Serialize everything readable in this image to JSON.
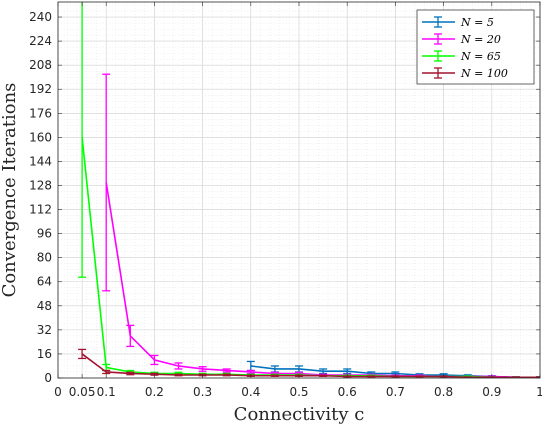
{
  "chart_data": {
    "type": "line",
    "xlabel": "Connectivity c",
    "ylabel": "Convergence Iterations",
    "xlim": [
      0,
      1
    ],
    "ylim": [
      0,
      250
    ],
    "grid": true,
    "minor_grid": true,
    "legend_position": "top-right",
    "x_ticks": [
      0,
      0.05,
      0.1,
      0.2,
      0.3,
      0.4,
      0.5,
      0.6,
      0.7,
      0.8,
      0.9,
      1
    ],
    "x_tick_labels": [
      "0",
      "0.05",
      "0.1",
      "0.2",
      "0.3",
      "0.4",
      "0.5",
      "0.6",
      "0.7",
      "0.8",
      "0.9",
      "1"
    ],
    "y_ticks": [
      0,
      16,
      32,
      48,
      64,
      80,
      96,
      112,
      128,
      144,
      160,
      176,
      192,
      208,
      224,
      240
    ],
    "y_tick_labels": [
      "0",
      "16",
      "32",
      "48",
      "64",
      "80",
      "96",
      "112",
      "128",
      "144",
      "160",
      "176",
      "192",
      "208",
      "224",
      "240"
    ],
    "series": [
      {
        "name": "N = 5",
        "color": "#0072BD",
        "x": [
          0.4,
          0.45,
          0.5,
          0.55,
          0.6,
          0.65,
          0.7,
          0.75,
          0.8,
          0.85,
          0.9,
          0.95,
          1.0
        ],
        "y": [
          8,
          6,
          6,
          4.5,
          4.5,
          3,
          3,
          2,
          2,
          1.5,
          1,
          0.5,
          0.5
        ],
        "err_low": [
          3,
          2,
          2,
          1.5,
          1.5,
          1,
          1,
          0.8,
          0.8,
          0.6,
          0.5,
          0.3,
          0.3
        ],
        "err_high": [
          3,
          2,
          2,
          1.5,
          1.5,
          1,
          1,
          0.8,
          0.8,
          0.6,
          0.5,
          0.3,
          0.3
        ]
      },
      {
        "name": "N = 20",
        "color": "#FF00FF",
        "x": [
          0.1,
          0.15,
          0.2,
          0.25,
          0.3,
          0.35,
          0.4,
          0.45,
          0.5,
          0.55,
          0.6,
          0.65,
          0.7,
          0.75,
          0.8,
          0.85,
          0.9,
          0.95,
          1.0
        ],
        "y": [
          130,
          28,
          12,
          8,
          6,
          5,
          4,
          3,
          3,
          2,
          2,
          2,
          1.5,
          1.5,
          1,
          1,
          1,
          0.5,
          0.5
        ],
        "err_low": [
          72,
          7,
          3,
          2,
          1.5,
          1,
          1,
          0.8,
          0.8,
          0.5,
          0.5,
          0.5,
          0.4,
          0.4,
          0.3,
          0.3,
          0.3,
          0.2,
          0.2
        ],
        "err_high": [
          72,
          7,
          3,
          2,
          1.5,
          1,
          1,
          0.8,
          0.8,
          0.5,
          0.5,
          0.5,
          0.4,
          0.4,
          0.3,
          0.3,
          0.3,
          0.2,
          0.2
        ]
      },
      {
        "name": "N = 65",
        "color": "#00FF00",
        "x": [
          0.05,
          0.1,
          0.15,
          0.2,
          0.25,
          0.3,
          0.35,
          0.4,
          0.45,
          0.5,
          0.55,
          0.6,
          0.65,
          0.7,
          0.75,
          0.8,
          0.85,
          0.9,
          0.95,
          1.0
        ],
        "y": [
          160,
          7,
          4,
          3,
          3,
          2.5,
          2.5,
          2,
          2,
          2,
          1.5,
          1.5,
          1.5,
          1,
          1,
          1,
          1,
          0.5,
          0.5,
          0.5
        ],
        "err_low": [
          93,
          2,
          1,
          0.8,
          0.8,
          0.6,
          0.6,
          0.5,
          0.5,
          0.5,
          0.4,
          0.4,
          0.4,
          0.3,
          0.3,
          0.3,
          0.3,
          0.2,
          0.2,
          0.2
        ],
        "err_high": [
          93,
          2,
          1,
          0.8,
          0.8,
          0.6,
          0.6,
          0.5,
          0.5,
          0.5,
          0.4,
          0.4,
          0.4,
          0.3,
          0.3,
          0.3,
          0.3,
          0.2,
          0.2,
          0.2
        ]
      },
      {
        "name": "N = 100",
        "color": "#A2142F",
        "x": [
          0.05,
          0.1,
          0.15,
          0.2,
          0.25,
          0.3,
          0.35,
          0.4,
          0.45,
          0.5,
          0.55,
          0.6,
          0.65,
          0.7,
          0.75,
          0.8,
          0.85,
          0.9,
          0.95,
          1.0
        ],
        "y": [
          16,
          4,
          3,
          2.5,
          2,
          2,
          2,
          1.5,
          1.5,
          1.5,
          1.5,
          1,
          1,
          1,
          1,
          1,
          0.5,
          0.5,
          0.5,
          0.5
        ],
        "err_low": [
          3,
          1,
          0.8,
          0.6,
          0.5,
          0.5,
          0.5,
          0.4,
          0.4,
          0.4,
          0.4,
          0.3,
          0.3,
          0.3,
          0.3,
          0.3,
          0.2,
          0.2,
          0.2,
          0.2
        ],
        "err_high": [
          3,
          1,
          0.8,
          0.6,
          0.5,
          0.5,
          0.5,
          0.4,
          0.4,
          0.4,
          0.4,
          0.3,
          0.3,
          0.3,
          0.3,
          0.3,
          0.2,
          0.2,
          0.2,
          0.2
        ]
      }
    ]
  }
}
